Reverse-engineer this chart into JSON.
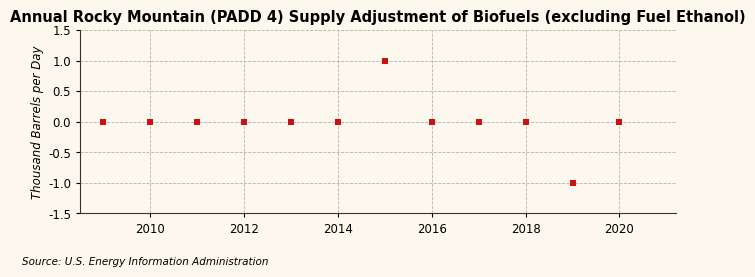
{
  "title": "Annual Rocky Mountain (PADD 4) Supply Adjustment of Biofuels (excluding Fuel Ethanol)",
  "ylabel": "Thousand Barrels per Day",
  "source": "Source: U.S. Energy Information Administration",
  "years": [
    2009,
    2010,
    2011,
    2012,
    2013,
    2014,
    2015,
    2016,
    2017,
    2018,
    2019,
    2020
  ],
  "values": [
    0.0,
    0.0,
    0.0,
    0.0,
    0.0,
    0.0,
    1.0,
    0.0,
    0.0,
    0.0,
    -1.0,
    0.0
  ],
  "xlim": [
    2008.5,
    2021.2
  ],
  "ylim": [
    -1.5,
    1.5
  ],
  "yticks": [
    -1.5,
    -1.0,
    -0.5,
    0.0,
    0.5,
    1.0,
    1.5
  ],
  "xticks": [
    2010,
    2012,
    2014,
    2016,
    2018,
    2020
  ],
  "marker_color": "#cc1111",
  "marker_size": 4,
  "background_color": "#fdf8ee",
  "grid_color": "#aaaaaa",
  "title_fontsize": 10.5,
  "axis_fontsize": 8.5,
  "source_fontsize": 7.5
}
